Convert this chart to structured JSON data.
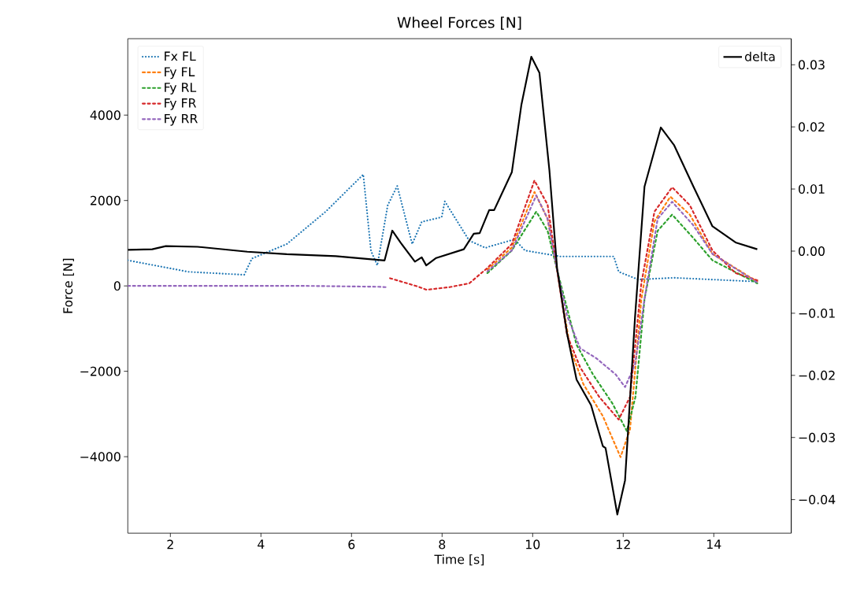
{
  "chart_data": {
    "type": "line",
    "title": "Wheel Forces [N]",
    "xlabel": "Time [s]",
    "ylabel": "Force [N]",
    "xlim": [
      1.06,
      15.71
    ],
    "xticks": [
      2,
      4,
      6,
      8,
      10,
      12,
      14
    ],
    "ylim": [
      -5790,
      5790
    ],
    "yticks": [
      {
        "value": -4000,
        "label": "−4000"
      },
      {
        "value": -2000,
        "label": "−2000"
      },
      0,
      2000,
      4000
    ],
    "y2lim": [
      -0.0454,
      0.0342
    ],
    "y2ticks": [
      {
        "value": -0.04,
        "label": "−0.04"
      },
      {
        "value": -0.03,
        "label": "−0.03"
      },
      {
        "value": -0.02,
        "label": "−0.02"
      },
      {
        "value": -0.01,
        "label": "−0.01"
      },
      {
        "value": 0,
        "label": "0.00"
      },
      0.01,
      0.02,
      0.03
    ],
    "legend": "top left",
    "marker": "none",
    "series": [
      {
        "name": "Fx FL",
        "color": "#1f77b4",
        "line_style": "dotted",
        "x": [
          1.06,
          2.4,
          3.63,
          3.8,
          4.57,
          5.43,
          6.26,
          6.43,
          6.57,
          6.8,
          7.01,
          7.34,
          7.55,
          7.99,
          8.06,
          8.6,
          8.96,
          9.04,
          9.6,
          9.83,
          10.61,
          11.79,
          11.9,
          12.33,
          13.12,
          14.96
        ],
        "values": [
          600,
          330,
          260,
          640,
          980,
          1740,
          2610,
          820,
          480,
          1890,
          2340,
          980,
          1500,
          1610,
          1980,
          1060,
          890,
          920,
          1090,
          830,
          690,
          690,
          330,
          150,
          190,
          100
        ]
      },
      {
        "name": "Fy FL",
        "color": "#ff7f0e",
        "line_style": "dashed",
        "x": [
          9.0,
          9.54,
          10.04,
          10.33,
          10.54,
          10.83,
          11.12,
          11.55,
          11.94,
          12.15,
          12.4,
          12.69,
          13.04,
          13.47,
          13.97,
          14.96
        ],
        "values": [
          380,
          900,
          2200,
          1570,
          370,
          -1460,
          -2300,
          -3050,
          -4010,
          -3360,
          -310,
          1510,
          2090,
          1670,
          750,
          100
        ]
      },
      {
        "name": "Fy RL",
        "color": "#2ca02c",
        "line_style": "dashed",
        "x": [
          9.0,
          9.54,
          10.08,
          10.33,
          10.54,
          10.97,
          11.33,
          11.76,
          12.08,
          12.27,
          12.47,
          12.76,
          13.08,
          13.54,
          13.97,
          14.96
        ],
        "values": [
          300,
          830,
          1740,
          1290,
          370,
          -1380,
          -2070,
          -2750,
          -3400,
          -2600,
          -310,
          1290,
          1670,
          1130,
          600,
          60
        ]
      },
      {
        "name": "Fy FR",
        "color": "#d62728",
        "line_style": "dashed",
        "x": [
          6.85,
          7.45,
          7.66,
          8.16,
          8.6,
          9.0,
          9.54,
          10.04,
          10.33,
          10.54,
          10.76,
          11.05,
          11.47,
          11.9,
          12.15,
          12.4,
          12.69,
          13.08,
          13.47,
          13.97,
          14.48,
          14.96
        ],
        "values": [
          180,
          -10,
          -90,
          -30,
          60,
          420,
          980,
          2470,
          1900,
          370,
          -1150,
          -1910,
          -2600,
          -3130,
          -2600,
          60,
          1740,
          2310,
          1890,
          830,
          300,
          130
        ]
      },
      {
        "name": "Fy RR",
        "color": "#9467bd",
        "line_style": "dashed",
        "x": [
          1.06,
          3,
          5,
          6.6,
          6.78,
          6.85,
          7.45,
          7.66,
          8.16,
          8.6,
          9.0,
          9.54,
          10.08,
          10.33,
          10.54,
          10.76,
          11.05,
          11.4,
          11.83,
          12.04,
          12.26,
          12.47,
          12.76,
          13.08,
          13.54,
          13.97,
          14.96
        ],
        "values": [
          0,
          0,
          0,
          -20,
          -30,
          null,
          null,
          null,
          null,
          null,
          340,
          830,
          2120,
          1570,
          370,
          -700,
          -1460,
          -1690,
          -2070,
          -2370,
          -1840,
          -310,
          1570,
          1970,
          1430,
          750,
          80
        ]
      },
      {
        "name": "delta",
        "color": "#000000",
        "line_style": "solid",
        "axis": "y2",
        "x": [
          1.06,
          1.6,
          1.9,
          2.6,
          3.7,
          4.57,
          5.65,
          6.73,
          6.9,
          7.08,
          7.4,
          7.55,
          7.65,
          7.87,
          8.48,
          8.7,
          8.83,
          9.04,
          9.15,
          9.54,
          9.75,
          9.97,
          10.15,
          10.37,
          10.54,
          10.76,
          10.97,
          11.29,
          11.55,
          11.61,
          11.87,
          12.04,
          12.26,
          12.47,
          12.83,
          13.12,
          13.55,
          13.97,
          14.48,
          14.96
        ],
        "values": [
          0.0002,
          0.0003,
          0.0008,
          0.0007,
          -0.0001,
          -0.0005,
          -0.0008,
          -0.0015,
          0.0033,
          0.0014,
          -0.0017,
          -0.001,
          -0.0023,
          -0.0011,
          0.0003,
          0.0028,
          0.0029,
          0.0066,
          0.0066,
          0.0127,
          0.0235,
          0.0313,
          0.0287,
          0.013,
          -0.0028,
          -0.0133,
          -0.0207,
          -0.0248,
          -0.0314,
          -0.0317,
          -0.0424,
          -0.0369,
          -0.0107,
          0.0104,
          0.0199,
          0.0171,
          0.0104,
          0.004,
          0.0014,
          0.0003
        ]
      }
    ]
  }
}
